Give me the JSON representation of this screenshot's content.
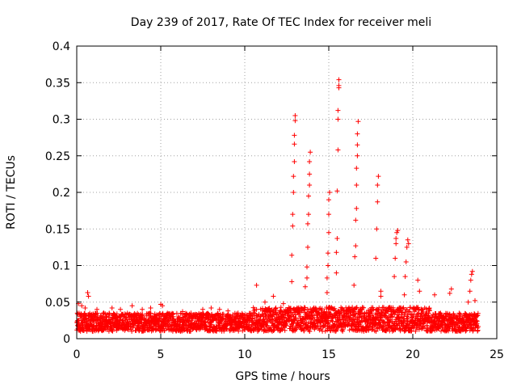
{
  "chart_data": {
    "type": "scatter",
    "title": "Day 239 of 2017, Rate Of TEC Index for receiver meli",
    "xlabel": "GPS time / hours",
    "ylabel": "ROTI / TECUs",
    "xlim": [
      0,
      25
    ],
    "ylim": [
      0,
      0.4
    ],
    "xticks": [
      0,
      5,
      10,
      15,
      20,
      25
    ],
    "yticks": [
      0,
      0.05,
      0.1,
      0.15,
      0.2,
      0.25,
      0.3,
      0.35,
      0.4
    ],
    "grid": true,
    "marker": "+",
    "color": "#ff0000",
    "background_band": {
      "x_range": [
        0,
        23.9
      ],
      "y_min": 0.01,
      "y_max_typical": 0.035
    },
    "series": [
      {
        "values_outliers": [
          [
            0.1,
            0.048
          ],
          [
            0.3,
            0.045
          ],
          [
            0.5,
            0.042
          ],
          [
            0.65,
            0.063
          ],
          [
            0.7,
            0.058
          ],
          [
            1.2,
            0.04
          ],
          [
            1.6,
            0.035
          ],
          [
            2.1,
            0.042
          ],
          [
            2.6,
            0.04
          ],
          [
            3.3,
            0.045
          ],
          [
            3.9,
            0.04
          ],
          [
            4.4,
            0.042
          ],
          [
            5.0,
            0.047
          ],
          [
            5.1,
            0.045
          ],
          [
            6.3,
            0.037
          ],
          [
            6.8,
            0.035
          ],
          [
            7.5,
            0.04
          ],
          [
            8.0,
            0.042
          ],
          [
            8.5,
            0.04
          ],
          [
            9.0,
            0.038
          ],
          [
            9.6,
            0.035
          ],
          [
            10.7,
            0.073
          ],
          [
            11.2,
            0.05
          ],
          [
            11.7,
            0.058
          ],
          [
            12.3,
            0.048
          ],
          [
            12.8,
            0.114
          ],
          [
            12.8,
            0.078
          ],
          [
            12.85,
            0.154
          ],
          [
            12.85,
            0.17
          ],
          [
            12.9,
            0.2
          ],
          [
            12.9,
            0.222
          ],
          [
            12.95,
            0.242
          ],
          [
            12.95,
            0.266
          ],
          [
            12.95,
            0.278
          ],
          [
            13.0,
            0.298
          ],
          [
            13.0,
            0.305
          ],
          [
            13.6,
            0.071
          ],
          [
            13.7,
            0.083
          ],
          [
            13.7,
            0.098
          ],
          [
            13.75,
            0.125
          ],
          [
            13.75,
            0.157
          ],
          [
            13.8,
            0.17
          ],
          [
            13.8,
            0.195
          ],
          [
            13.85,
            0.21
          ],
          [
            13.85,
            0.225
          ],
          [
            13.85,
            0.242
          ],
          [
            13.9,
            0.255
          ],
          [
            14.9,
            0.063
          ],
          [
            14.9,
            0.083
          ],
          [
            14.95,
            0.1
          ],
          [
            14.95,
            0.117
          ],
          [
            15.0,
            0.145
          ],
          [
            15.0,
            0.17
          ],
          [
            15.0,
            0.19
          ],
          [
            15.05,
            0.2
          ],
          [
            15.45,
            0.09
          ],
          [
            15.45,
            0.118
          ],
          [
            15.5,
            0.137
          ],
          [
            15.5,
            0.202
          ],
          [
            15.55,
            0.258
          ],
          [
            15.55,
            0.3
          ],
          [
            15.55,
            0.312
          ],
          [
            15.6,
            0.343
          ],
          [
            15.6,
            0.346
          ],
          [
            15.6,
            0.354
          ],
          [
            16.5,
            0.073
          ],
          [
            16.55,
            0.112
          ],
          [
            16.6,
            0.127
          ],
          [
            16.6,
            0.162
          ],
          [
            16.65,
            0.178
          ],
          [
            16.65,
            0.21
          ],
          [
            16.65,
            0.233
          ],
          [
            16.7,
            0.25
          ],
          [
            16.7,
            0.265
          ],
          [
            16.7,
            0.28
          ],
          [
            16.75,
            0.297
          ],
          [
            17.8,
            0.11
          ],
          [
            17.85,
            0.15
          ],
          [
            17.9,
            0.187
          ],
          [
            17.9,
            0.21
          ],
          [
            17.95,
            0.222
          ],
          [
            18.1,
            0.065
          ],
          [
            18.1,
            0.058
          ],
          [
            18.9,
            0.085
          ],
          [
            18.95,
            0.11
          ],
          [
            19.0,
            0.13
          ],
          [
            19.0,
            0.137
          ],
          [
            19.05,
            0.145
          ],
          [
            19.1,
            0.148
          ],
          [
            19.5,
            0.06
          ],
          [
            19.55,
            0.085
          ],
          [
            19.6,
            0.105
          ],
          [
            19.65,
            0.125
          ],
          [
            19.7,
            0.135
          ],
          [
            19.75,
            0.13
          ],
          [
            20.3,
            0.08
          ],
          [
            20.4,
            0.065
          ],
          [
            21.3,
            0.06
          ],
          [
            22.2,
            0.062
          ],
          [
            22.3,
            0.068
          ],
          [
            23.3,
            0.05
          ],
          [
            23.4,
            0.065
          ],
          [
            23.45,
            0.08
          ],
          [
            23.5,
            0.088
          ],
          [
            23.55,
            0.092
          ],
          [
            23.7,
            0.052
          ]
        ]
      }
    ]
  }
}
